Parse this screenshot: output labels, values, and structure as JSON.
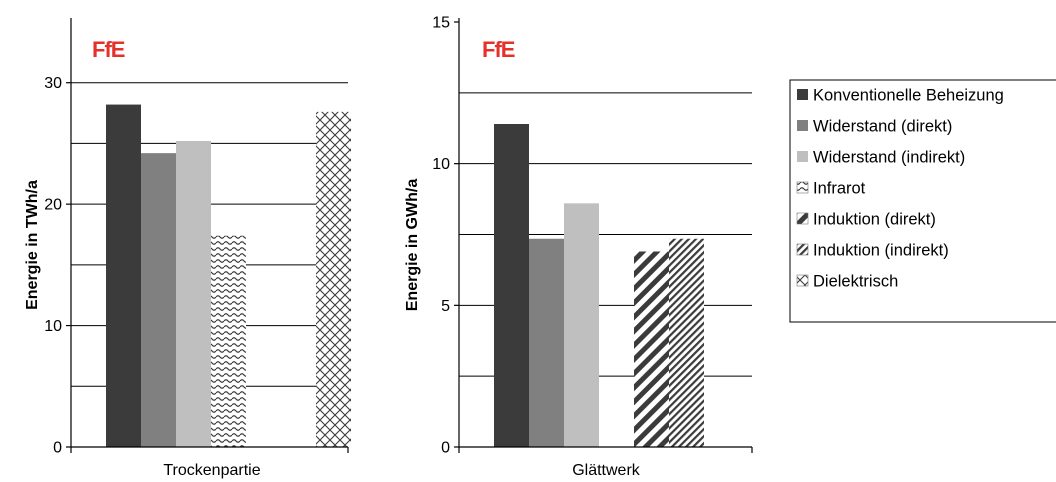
{
  "logo_text": "FfE",
  "colors": {
    "konventionell": "#3b3b3b",
    "widerstand_direkt": "#808080",
    "widerstand_indirekt": "#bfbfbf",
    "pattern_ink": "#3b3b3b",
    "logo": "#e4322b"
  },
  "legend": [
    {
      "label": "Konventionelle Beheizung",
      "pattern": "solid-dark"
    },
    {
      "label": "Widerstand (direkt)",
      "pattern": "solid-mid"
    },
    {
      "label": "Widerstand (indirekt)",
      "pattern": "solid-light"
    },
    {
      "label": "Infrarot",
      "pattern": "waves"
    },
    {
      "label": "Induktion (direkt)",
      "pattern": "diag-wide"
    },
    {
      "label": "Induktion (indirekt)",
      "pattern": "diag-narrow"
    },
    {
      "label": "Dielektrisch",
      "pattern": "crosshatch"
    }
  ],
  "chart_data": [
    {
      "type": "bar",
      "categories": [
        "Trockenpartie"
      ],
      "ylabel": "Energie in TWh/a",
      "ylim": [
        0,
        35
      ],
      "yticks": [
        0,
        10,
        20,
        30
      ],
      "grid_lines": [
        5,
        10,
        15,
        20,
        25,
        30
      ],
      "series": [
        {
          "name": "Konventionelle Beheizung",
          "values": [
            28.2
          ]
        },
        {
          "name": "Widerstand (direkt)",
          "values": [
            24.2
          ]
        },
        {
          "name": "Widerstand (indirekt)",
          "values": [
            25.2
          ]
        },
        {
          "name": "Infrarot",
          "values": [
            17.4
          ]
        },
        {
          "name": "Induktion (direkt)",
          "values": [
            null
          ]
        },
        {
          "name": "Induktion (indirekt)",
          "values": [
            null
          ]
        },
        {
          "name": "Dielektrisch",
          "values": [
            27.6
          ]
        }
      ]
    },
    {
      "type": "bar",
      "categories": [
        "Glättwerk"
      ],
      "ylabel": "Energie in GWh/a",
      "ylim": [
        0,
        15
      ],
      "yticks": [
        0,
        5,
        10,
        15
      ],
      "grid_lines": [
        2.5,
        5,
        7.5,
        10,
        12.5
      ],
      "series": [
        {
          "name": "Konventionelle Beheizung",
          "values": [
            11.4
          ]
        },
        {
          "name": "Widerstand (direkt)",
          "values": [
            7.35
          ]
        },
        {
          "name": "Widerstand (indirekt)",
          "values": [
            8.6
          ]
        },
        {
          "name": "Infrarot",
          "values": [
            null
          ]
        },
        {
          "name": "Induktion (direkt)",
          "values": [
            6.9
          ]
        },
        {
          "name": "Induktion (indirekt)",
          "values": [
            7.35
          ]
        },
        {
          "name": "Dielektrisch",
          "values": [
            null
          ]
        }
      ]
    }
  ]
}
